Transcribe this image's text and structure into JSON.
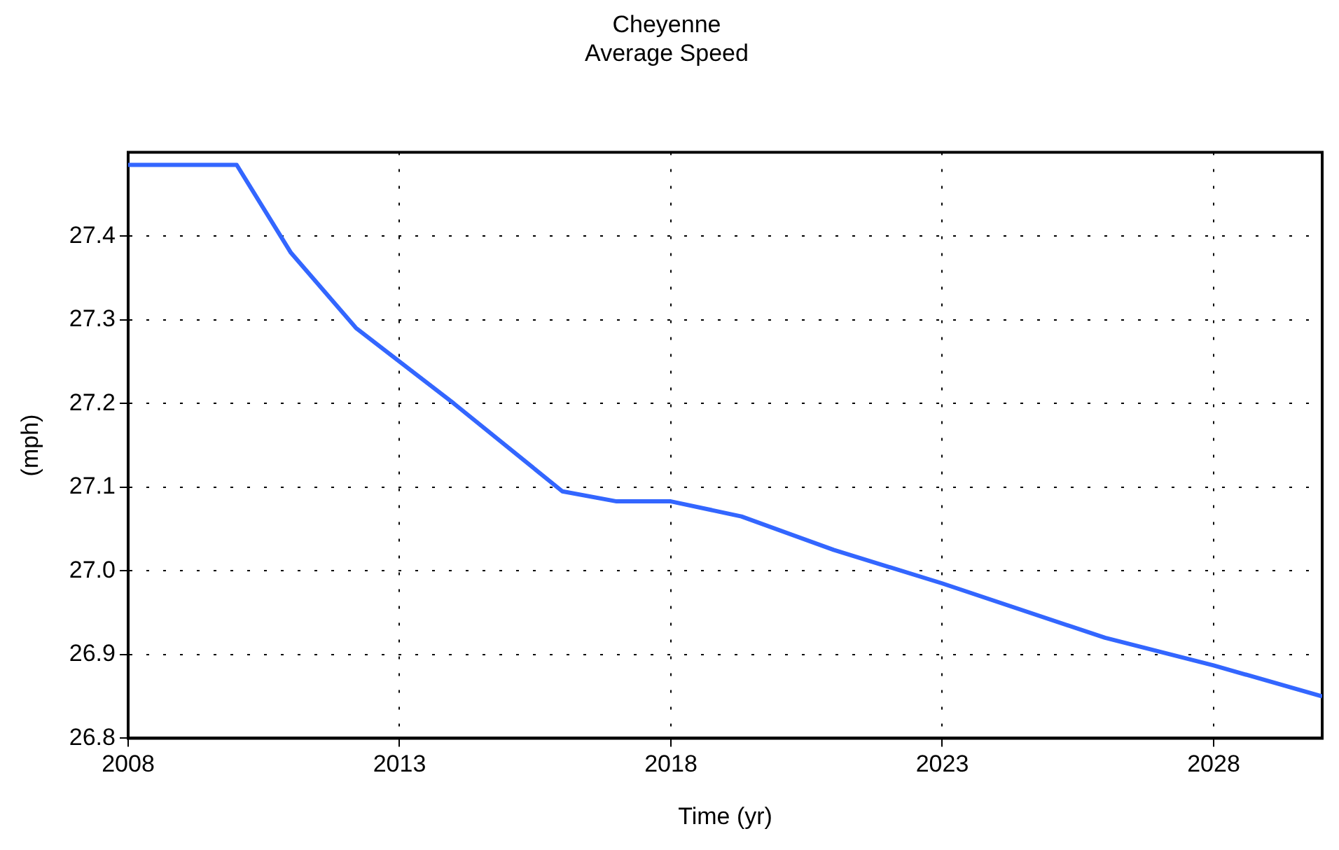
{
  "chart_data": {
    "type": "line",
    "title": "Cheyenne\nAverage Speed",
    "xlabel": "Time (yr)",
    "ylabel": "(mph)",
    "x": [
      2008,
      2010,
      2011,
      2012.2,
      2014,
      2016,
      2017,
      2018,
      2019.3,
      2021,
      2023,
      2026,
      2028,
      2030
    ],
    "series": [
      {
        "color": "#3366ff",
        "values": [
          27.485,
          27.485,
          27.38,
          27.29,
          27.2,
          27.095,
          27.083,
          27.083,
          27.065,
          27.025,
          26.985,
          26.92,
          26.887,
          26.85
        ]
      }
    ],
    "xlim": [
      2008,
      2030
    ],
    "xticks": [
      2008,
      2013,
      2018,
      2023,
      2028
    ],
    "ylim": [
      26.8,
      27.5
    ],
    "yticks": [
      26.8,
      26.9,
      {
        "value": 27,
        "label": "27.0"
      },
      27.1,
      27.2,
      27.3,
      27.4
    ],
    "grid": true,
    "legend": false,
    "marker": "none",
    "line_style": "solid"
  }
}
